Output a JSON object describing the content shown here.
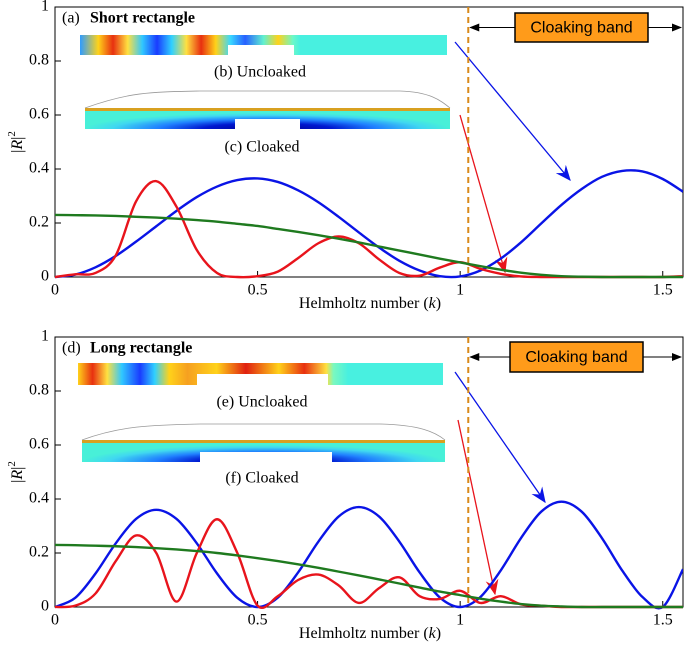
{
  "chart_data": [
    {
      "type": "line",
      "panel_label": "(a)",
      "title": "Short rectangle",
      "inset_labels": [
        "(b) Uncloaked",
        "(c) Cloaked"
      ],
      "band_label": "Cloaking band",
      "band_start": 1.02,
      "xlabel": [
        "Helmholtz number (",
        "k",
        ")"
      ],
      "ylabel": [
        "|",
        "R",
        "|",
        "2"
      ],
      "xlim": [
        0,
        1.55
      ],
      "ylim": [
        0,
        1
      ],
      "xticks": [
        0,
        0.5,
        1,
        1.5
      ],
      "yticks": [
        0,
        0.2,
        0.4,
        0.6,
        0.8,
        1
      ],
      "x": [
        0,
        0.05,
        0.1,
        0.15,
        0.2,
        0.25,
        0.3,
        0.35,
        0.4,
        0.45,
        0.5,
        0.55,
        0.6,
        0.65,
        0.7,
        0.75,
        0.8,
        0.85,
        0.9,
        0.95,
        1,
        1.05,
        1.1,
        1.15,
        1.2,
        1.25,
        1.3,
        1.35,
        1.4,
        1.45,
        1.5,
        1.55
      ],
      "series": [
        {
          "color": "#0a14e6",
          "values": [
            0,
            0.009,
            0.036,
            0.078,
            0.131,
            0.188,
            0.245,
            0.296,
            0.335,
            0.359,
            0.365,
            0.352,
            0.321,
            0.277,
            0.223,
            0.165,
            0.109,
            0.06,
            0.024,
            0.003,
            0.002,
            0.024,
            0.068,
            0.128,
            0.198,
            0.267,
            0.326,
            0.371,
            0.393,
            0.391,
            0.363,
            0.316
          ]
        },
        {
          "color": "#e8141c",
          "values": [
            0,
            0.01,
            0.015,
            0.08,
            0.28,
            0.355,
            0.26,
            0.1,
            0.015,
            0,
            0.003,
            0.02,
            0.07,
            0.125,
            0.15,
            0.125,
            0.065,
            0.015,
            0.005,
            0.035,
            0.055,
            0.03,
            0.012,
            0.002,
            0,
            0,
            0,
            0,
            0,
            0,
            0,
            0.003
          ]
        },
        {
          "color": "#1f7a1f",
          "values": [
            0.23,
            0.229,
            0.228,
            0.226,
            0.223,
            0.22,
            0.216,
            0.211,
            0.205,
            0.197,
            0.189,
            0.178,
            0.167,
            0.155,
            0.142,
            0.128,
            0.113,
            0.098,
            0.083,
            0.068,
            0.054,
            0.04,
            0.027,
            0.016,
            0.008,
            0.003,
            0.001,
            0,
            0,
            0,
            0,
            0
          ]
        }
      ]
    },
    {
      "type": "line",
      "panel_label": "(d)",
      "title": "Long rectangle",
      "inset_labels": [
        "(e) Uncloaked",
        "(f) Cloaked"
      ],
      "band_label": "Cloaking band",
      "band_start": 1.02,
      "xlabel": [
        "Helmholtz number (",
        "k",
        ")"
      ],
      "ylabel": [
        "|",
        "R",
        "|",
        "2"
      ],
      "xlim": [
        0,
        1.55
      ],
      "ylim": [
        0,
        1
      ],
      "xticks": [
        0,
        0.5,
        1,
        1.5
      ],
      "yticks": [
        0,
        0.2,
        0.4,
        0.6,
        0.8,
        1
      ],
      "x": [
        0,
        0.05,
        0.1,
        0.15,
        0.2,
        0.25,
        0.3,
        0.35,
        0.4,
        0.45,
        0.5,
        0.55,
        0.6,
        0.65,
        0.7,
        0.75,
        0.8,
        0.85,
        0.9,
        0.95,
        1,
        1.05,
        1.1,
        1.15,
        1.2,
        1.25,
        1.3,
        1.35,
        1.4,
        1.45,
        1.5,
        1.55
      ],
      "series": [
        {
          "color": "#0a14e6",
          "values": [
            0,
            0.034,
            0.124,
            0.236,
            0.326,
            0.36,
            0.326,
            0.236,
            0.124,
            0.034,
            0,
            0.035,
            0.128,
            0.242,
            0.335,
            0.37,
            0.335,
            0.242,
            0.128,
            0.035,
            0,
            0.037,
            0.135,
            0.255,
            0.353,
            0.39,
            0.353,
            0.255,
            0.135,
            0.037,
            0,
            0.14
          ]
        },
        {
          "color": "#e8141c",
          "values": [
            0,
            0.005,
            0.05,
            0.17,
            0.265,
            0.2,
            0.02,
            0.2,
            0.325,
            0.2,
            0.005,
            0.04,
            0.1,
            0.12,
            0.08,
            0.015,
            0.07,
            0.11,
            0.04,
            0.03,
            0.06,
            0.015,
            0.04,
            0.01,
            0.005,
            0,
            0,
            0,
            0,
            0,
            0,
            0
          ]
        },
        {
          "color": "#1f7a1f",
          "values": [
            0.23,
            0.229,
            0.227,
            0.225,
            0.222,
            0.218,
            0.213,
            0.207,
            0.2,
            0.191,
            0.181,
            0.17,
            0.158,
            0.145,
            0.131,
            0.117,
            0.102,
            0.087,
            0.072,
            0.057,
            0.044,
            0.031,
            0.02,
            0.011,
            0.005,
            0.002,
            0,
            0,
            0,
            0,
            0,
            0
          ]
        }
      ]
    }
  ]
}
